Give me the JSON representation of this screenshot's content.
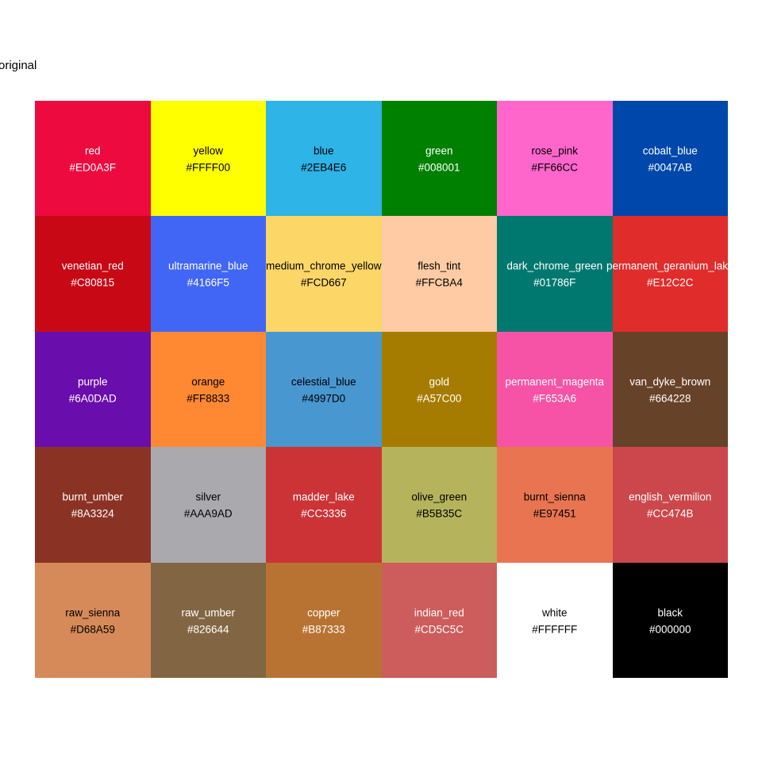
{
  "title": "original",
  "palette": {
    "rows": 5,
    "cols": 6,
    "swatches": [
      {
        "name": "red",
        "hex": "#ED0A3F",
        "text": "#FFFFFF"
      },
      {
        "name": "yellow",
        "hex": "#FFFF00",
        "text": "#000000"
      },
      {
        "name": "blue",
        "hex": "#2EB4E6",
        "text": "#000000"
      },
      {
        "name": "green",
        "hex": "#008001",
        "text": "#FFFFFF"
      },
      {
        "name": "rose_pink",
        "hex": "#FF66CC",
        "text": "#000000"
      },
      {
        "name": "cobalt_blue",
        "hex": "#0047AB",
        "text": "#FFFFFF"
      },
      {
        "name": "venetian_red",
        "hex": "#C80815",
        "text": "#FFFFFF"
      },
      {
        "name": "ultramarine_blue",
        "hex": "#4166F5",
        "text": "#FFFFFF"
      },
      {
        "name": "medium_chrome_yellow",
        "hex": "#FCD667",
        "text": "#000000"
      },
      {
        "name": "flesh_tint",
        "hex": "#FFCBA4",
        "text": "#000000"
      },
      {
        "name": "dark_chrome_green",
        "hex": "#01786F",
        "text": "#FFFFFF"
      },
      {
        "name": "permanent_geranium_lake",
        "hex": "#E12C2C",
        "text": "#FFFFFF"
      },
      {
        "name": "purple",
        "hex": "#6A0DAD",
        "text": "#FFFFFF"
      },
      {
        "name": "orange",
        "hex": "#FF8833",
        "text": "#000000"
      },
      {
        "name": "celestial_blue",
        "hex": "#4997D0",
        "text": "#000000"
      },
      {
        "name": "gold",
        "hex": "#A57C00",
        "text": "#FFFFFF"
      },
      {
        "name": "permanent_magenta",
        "hex": "#F653A6",
        "text": "#FFFFFF"
      },
      {
        "name": "van_dyke_brown",
        "hex": "#664228",
        "text": "#FFFFFF"
      },
      {
        "name": "burnt_umber",
        "hex": "#8A3324",
        "text": "#FFFFFF"
      },
      {
        "name": "silver",
        "hex": "#AAA9AD",
        "text": "#000000"
      },
      {
        "name": "madder_lake",
        "hex": "#CC3336",
        "text": "#FFFFFF"
      },
      {
        "name": "olive_green",
        "hex": "#B5B35C",
        "text": "#000000"
      },
      {
        "name": "burnt_sienna",
        "hex": "#E97451",
        "text": "#000000"
      },
      {
        "name": "english_vermilion",
        "hex": "#CC474B",
        "text": "#FFFFFF"
      },
      {
        "name": "raw_sienna",
        "hex": "#D68A59",
        "text": "#000000"
      },
      {
        "name": "raw_umber",
        "hex": "#826644",
        "text": "#FFFFFF"
      },
      {
        "name": "copper",
        "hex": "#B87333",
        "text": "#FFFFFF"
      },
      {
        "name": "indian_red",
        "hex": "#CD5C5C",
        "text": "#FFFFFF"
      },
      {
        "name": "white",
        "hex": "#FFFFFF",
        "text": "#000000"
      },
      {
        "name": "black",
        "hex": "#000000",
        "text": "#FFFFFF"
      }
    ]
  },
  "chart_data": {
    "type": "table",
    "title": "original",
    "rows": 5,
    "cols": 6,
    "legend_position": "none",
    "categories": [
      "red",
      "yellow",
      "blue",
      "green",
      "rose_pink",
      "cobalt_blue",
      "venetian_red",
      "ultramarine_blue",
      "medium_chrome_yellow",
      "flesh_tint",
      "dark_chrome_green",
      "permanent_geranium_lake",
      "purple",
      "orange",
      "celestial_blue",
      "gold",
      "permanent_magenta",
      "van_dyke_brown",
      "burnt_umber",
      "silver",
      "madder_lake",
      "olive_green",
      "burnt_sienna",
      "english_vermilion",
      "raw_sienna",
      "raw_umber",
      "copper",
      "indian_red",
      "white",
      "black"
    ],
    "values": [
      "#ED0A3F",
      "#FFFF00",
      "#2EB4E6",
      "#008001",
      "#FF66CC",
      "#0047AB",
      "#C80815",
      "#4166F5",
      "#FCD667",
      "#FFCBA4",
      "#01786F",
      "#E12C2C",
      "#6A0DAD",
      "#FF8833",
      "#4997D0",
      "#A57C00",
      "#F653A6",
      "#664228",
      "#8A3324",
      "#AAA9AD",
      "#CC3336",
      "#B5B35C",
      "#E97451",
      "#CC474B",
      "#D68A59",
      "#826644",
      "#B87333",
      "#CD5C5C",
      "#FFFFFF",
      "#000000"
    ]
  }
}
